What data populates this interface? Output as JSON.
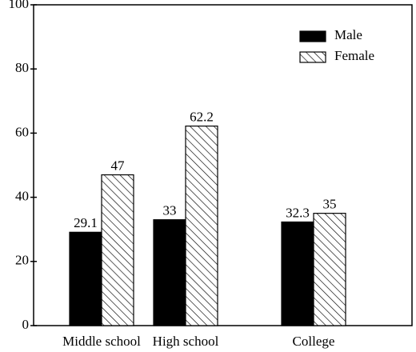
{
  "chart_data": {
    "type": "bar",
    "categories": [
      "Middle school",
      "High school",
      "College"
    ],
    "series": [
      {
        "name": "Male",
        "color": "#000000",
        "values": [
          29.1,
          33,
          32.3
        ]
      },
      {
        "name": "Female",
        "color": "#000000",
        "pattern": "hatch",
        "values": [
          47,
          62.2,
          35
        ]
      }
    ],
    "ylim": [
      0,
      100
    ],
    "yticks": [
      0,
      20,
      40,
      60,
      80,
      100
    ],
    "legend": "upper right"
  }
}
